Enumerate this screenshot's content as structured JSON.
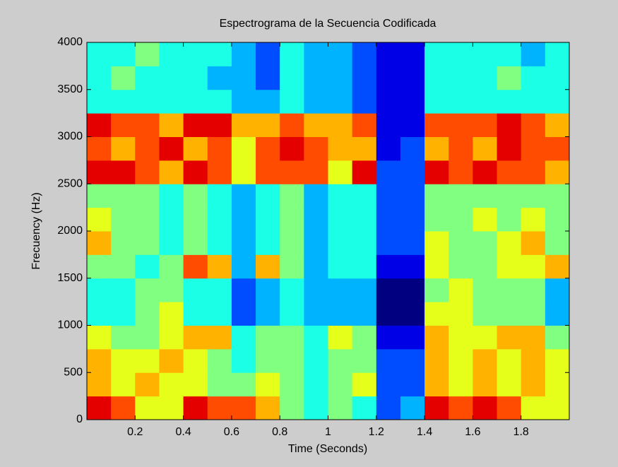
{
  "chart_data": {
    "type": "heatmap",
    "title": "Espectrograma de la Secuencia Codificada",
    "x_label": "Time (Seconds)",
    "y_label": "Frecuency (Hz)",
    "xlim": [
      0,
      2
    ],
    "ylim": [
      0,
      4000
    ],
    "xticks": [
      0.2,
      0.4,
      0.6,
      0.8,
      1,
      1.2,
      1.4,
      1.6,
      1.8
    ],
    "yticks": [
      0,
      500,
      1000,
      1500,
      2000,
      2500,
      3000,
      3500,
      4000
    ],
    "xbins": [
      0,
      0.1,
      0.2,
      0.3,
      0.4,
      0.5,
      0.6,
      0.7,
      0.8,
      0.9,
      1,
      1.1,
      1.2,
      1.3,
      1.4,
      1.5,
      1.6,
      1.7,
      1.8,
      1.9,
      2
    ],
    "ybins": [
      0,
      250,
      500,
      750,
      1000,
      1250,
      1500,
      1750,
      2000,
      2250,
      2500,
      2750,
      3000,
      3250,
      3500,
      3750,
      4000
    ],
    "zlim": [
      0,
      10
    ],
    "colormap": "jet",
    "z": [
      [
        9,
        8,
        6,
        6,
        9,
        8,
        8,
        7,
        5,
        4,
        5,
        4,
        2,
        3,
        9,
        8,
        9,
        8,
        6,
        6
      ],
      [
        7,
        6,
        7,
        6,
        6,
        5,
        5,
        6,
        5,
        4,
        5,
        6,
        2,
        2,
        7,
        6,
        7,
        6,
        7,
        6
      ],
      [
        7,
        6,
        6,
        7,
        6,
        5,
        4,
        5,
        5,
        4,
        5,
        5,
        2,
        2,
        7,
        6,
        7,
        6,
        7,
        6
      ],
      [
        6,
        5,
        5,
        6,
        7,
        7,
        4,
        5,
        5,
        4,
        6,
        5,
        1,
        1,
        7,
        6,
        6,
        7,
        7,
        5
      ],
      [
        4,
        4,
        5,
        6,
        4,
        4,
        2,
        3,
        4,
        3,
        3,
        3,
        0,
        0,
        6,
        6,
        5,
        5,
        5,
        3
      ],
      [
        4,
        4,
        5,
        5,
        4,
        4,
        2,
        3,
        4,
        3,
        3,
        3,
        0,
        0,
        5,
        6,
        5,
        5,
        5,
        3
      ],
      [
        5,
        5,
        4,
        5,
        8,
        7,
        3,
        7,
        5,
        3,
        4,
        4,
        1,
        1,
        6,
        5,
        5,
        6,
        6,
        7
      ],
      [
        7,
        5,
        5,
        4,
        5,
        4,
        3,
        4,
        5,
        3,
        4,
        4,
        2,
        2,
        6,
        5,
        5,
        6,
        7,
        5
      ],
      [
        6,
        5,
        5,
        4,
        5,
        4,
        3,
        4,
        5,
        3,
        4,
        4,
        2,
        2,
        5,
        5,
        6,
        5,
        6,
        5
      ],
      [
        5,
        5,
        5,
        4,
        5,
        4,
        3,
        4,
        5,
        3,
        4,
        4,
        2,
        2,
        5,
        5,
        5,
        5,
        5,
        5
      ],
      [
        9,
        9,
        8,
        7,
        9,
        8,
        6,
        8,
        8,
        8,
        6,
        9,
        2,
        2,
        9,
        8,
        9,
        8,
        8,
        7
      ],
      [
        8,
        7,
        8,
        9,
        7,
        8,
        6,
        8,
        9,
        8,
        7,
        7,
        1,
        2,
        7,
        8,
        7,
        9,
        8,
        8
      ],
      [
        9,
        8,
        8,
        7,
        9,
        9,
        7,
        7,
        8,
        7,
        7,
        8,
        1,
        1,
        8,
        8,
        8,
        9,
        8,
        7
      ],
      [
        4,
        4,
        4,
        4,
        4,
        4,
        3,
        3,
        4,
        3,
        3,
        2,
        1,
        1,
        4,
        4,
        4,
        4,
        4,
        4
      ],
      [
        4,
        5,
        4,
        4,
        4,
        3,
        3,
        2,
        4,
        3,
        3,
        2,
        1,
        1,
        4,
        4,
        4,
        5,
        4,
        4
      ],
      [
        4,
        4,
        5,
        4,
        4,
        4,
        3,
        2,
        4,
        3,
        3,
        2,
        1,
        1,
        4,
        4,
        4,
        4,
        3,
        4
      ]
    ]
  }
}
